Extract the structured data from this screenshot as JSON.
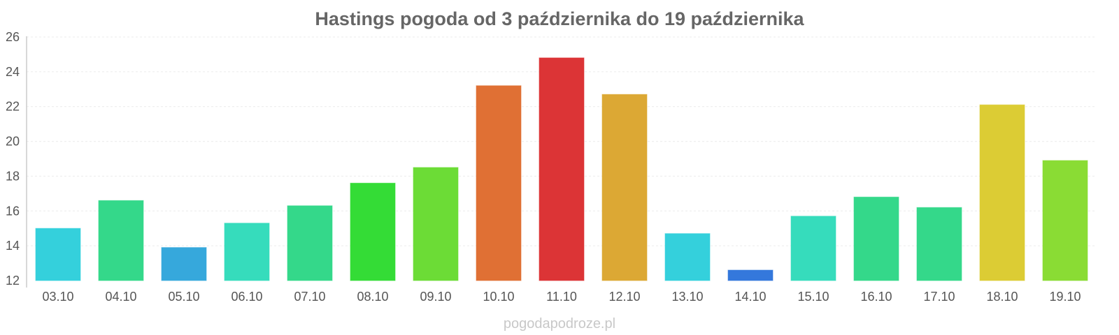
{
  "chart_data": {
    "type": "bar",
    "title": "Hastings pogoda od 3 października do 19 października",
    "xlabel": "",
    "ylabel": "",
    "ylim": [
      12,
      26
    ],
    "yticks": [
      "12",
      "14",
      "16",
      "18",
      "20",
      "22",
      "24",
      "26"
    ],
    "grid": true,
    "categories": [
      "03.10",
      "04.10",
      "05.10",
      "06.10",
      "07.10",
      "08.10",
      "09.10",
      "10.10",
      "11.10",
      "12.10",
      "13.10",
      "14.10",
      "15.10",
      "16.10",
      "17.10",
      "18.10",
      "19.10"
    ],
    "values": [
      15.0,
      16.6,
      13.9,
      15.3,
      16.3,
      17.6,
      18.5,
      23.2,
      24.8,
      22.7,
      14.7,
      12.6,
      15.7,
      16.8,
      16.2,
      22.1,
      18.9
    ],
    "colors": [
      "#34d0dc",
      "#34d88a",
      "#36a8dc",
      "#36dcbc",
      "#34d88a",
      "#34dc36",
      "#6cdc36",
      "#e07034",
      "#dc3436",
      "#dca834",
      "#34d0dc",
      "#3478dc",
      "#36dcbc",
      "#34d88a",
      "#34d88a",
      "#dccc34",
      "#8adc34"
    ]
  },
  "footer": {
    "source": "pogodapodroze.pl"
  }
}
